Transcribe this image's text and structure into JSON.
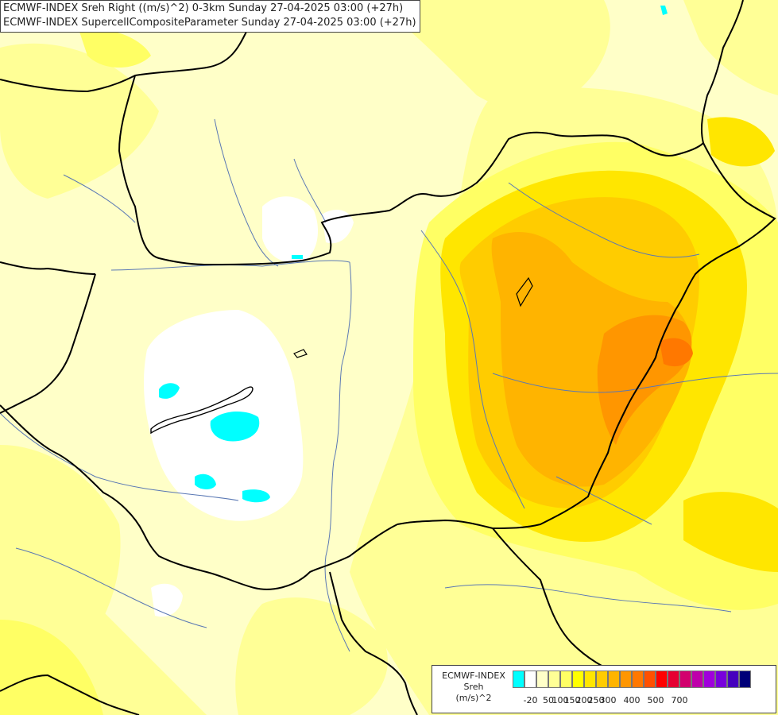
{
  "title_lines": [
    "ECMWF-INDEX Sreh Right ((m/s)^2) 0-3km Sunday 27-04-2025 03:00 (+27h)",
    "ECMWF-INDEX SupercellCompositeParameter Sunday 27-04-2025 03:00 (+27h)"
  ],
  "legend": {
    "name_lines": [
      "ECMWF-INDEX",
      "Sreh",
      "(m/s)^2"
    ],
    "colors": [
      "#00ffff",
      "#ffffff",
      "#ffffc8",
      "#ffff96",
      "#ffff64",
      "#ffff00",
      "#ffe600",
      "#ffcc00",
      "#ffb400",
      "#ff9600",
      "#ff7800",
      "#ff5000",
      "#ff0000",
      "#e60032",
      "#d2006e",
      "#be00aa",
      "#a000dc",
      "#7800dc",
      "#4600be",
      "#000078"
    ],
    "ticks": [
      "-20",
      "50",
      "100",
      "150",
      "200",
      "250",
      "300",
      "400",
      "500",
      "700"
    ]
  },
  "colors": {
    "background": "#ffffc8",
    "border": "#000000",
    "river": "#5a78b4"
  }
}
